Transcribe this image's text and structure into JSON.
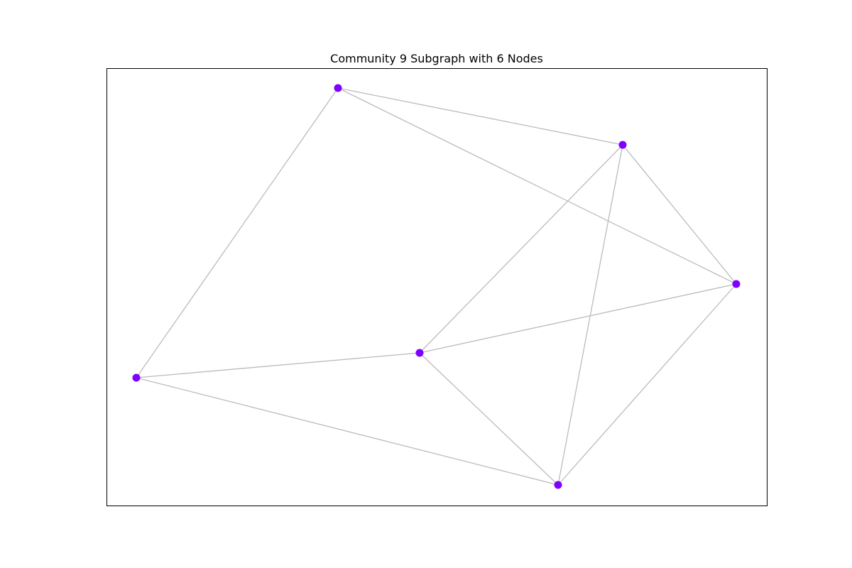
{
  "title": "Community 9 Subgraph with 6 Nodes",
  "colors": {
    "node": "#8000ff",
    "edge": "#bbbbbb",
    "frame": "#000000",
    "background": "#ffffff"
  },
  "graph": {
    "nodes": [
      {
        "id": "n1"
      },
      {
        "id": "n2"
      },
      {
        "id": "n3"
      },
      {
        "id": "n4"
      },
      {
        "id": "n5"
      },
      {
        "id": "n6"
      }
    ],
    "edges": [
      [
        "n1",
        "n2"
      ],
      [
        "n1",
        "n3"
      ],
      [
        "n1",
        "n5"
      ],
      [
        "n2",
        "n3"
      ],
      [
        "n2",
        "n4"
      ],
      [
        "n2",
        "n6"
      ],
      [
        "n3",
        "n4"
      ],
      [
        "n3",
        "n6"
      ],
      [
        "n4",
        "n5"
      ],
      [
        "n4",
        "n6"
      ],
      [
        "n5",
        "n6"
      ]
    ]
  }
}
